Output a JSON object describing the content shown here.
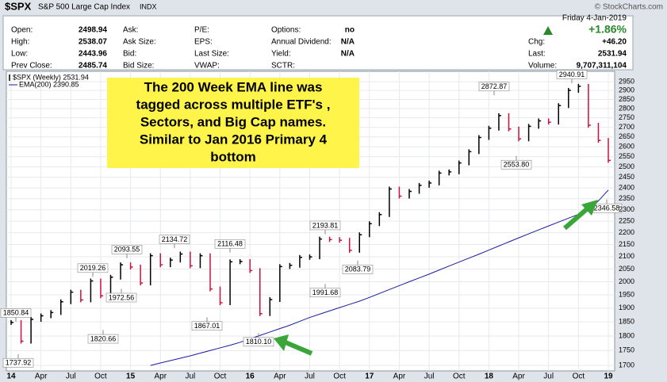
{
  "header": {
    "symbol": "$SPX",
    "name": "S&P 500 Large Cap Index",
    "exchange": "INDX",
    "date": "Friday  4-Jan-2019",
    "change_pct": "+1.86%",
    "watermark": "© StockCharts.com",
    "columns": [
      [
        {
          "label": "Open:",
          "value": "2498.94"
        },
        {
          "label": "High:",
          "value": "2538.07"
        },
        {
          "label": "Low:",
          "value": "2443.96"
        },
        {
          "label": "Prev Close:",
          "value": "2485.74"
        }
      ],
      [
        {
          "label": "Ask:"
        },
        {
          "label": "Ask Size:"
        },
        {
          "label": "Bid:"
        },
        {
          "label": "Bid Size:"
        }
      ],
      [
        {
          "label": "P/E:"
        },
        {
          "label": "EPS:"
        },
        {
          "label": "Last Size:"
        },
        {
          "label": "VWAP:"
        }
      ],
      [
        {
          "label": "Options:",
          "value": "no"
        },
        {
          "label": "Annual Dividend:",
          "value": "N/A"
        },
        {
          "label": "Yield:",
          "value": "N/A"
        },
        {
          "label": "SCTR:"
        }
      ]
    ],
    "stats": [
      {
        "label": "Chg:",
        "value": "+46.20"
      },
      {
        "label": "Last:",
        "value": "2531.94"
      },
      {
        "label": "Volume:",
        "value": "9,707,311,104"
      }
    ]
  },
  "chart_data": {
    "type": "line",
    "log": true,
    "grid": true,
    "legend": [
      "$SPX (Weekly) 2531.94",
      "EMA(200) 2390.85"
    ],
    "callout": [
      "The 200 Week EMA line was",
      "tagged across multiple ETF's ,",
      "Sectors, and Big Cap names.",
      "Similar to Jan 2016 Primary 4",
      "bottom"
    ],
    "categories": [
      "14",
      null,
      null,
      "Apr",
      null,
      null,
      "Jul",
      null,
      null,
      "Oct",
      null,
      null,
      "15",
      null,
      null,
      "Apr",
      null,
      null,
      "Jul",
      null,
      null,
      "Oct",
      null,
      null,
      "16",
      null,
      null,
      "Apr",
      null,
      null,
      "Jul",
      null,
      null,
      "Oct",
      null,
      null,
      "17",
      null,
      null,
      "Apr",
      null,
      null,
      "Jul",
      null,
      null,
      "Oct",
      null,
      null,
      "18",
      null,
      null,
      "Apr",
      null,
      null,
      "Jul",
      null,
      null,
      "Oct",
      null,
      null,
      "19"
    ],
    "series": [
      {
        "name": "$SPX",
        "color": "#000000",
        "down_color": "#d0103a",
        "values": [
          1848,
          1782,
          1859,
          1872,
          1884,
          1924,
          1960,
          1931,
          2003,
          1946,
          2018,
          2067,
          2058,
          1995,
          2104,
          2067,
          2086,
          2111,
          2063,
          2104,
          1972,
          1920,
          2079,
          2080,
          2044,
          1880,
          1932,
          2060,
          2065,
          2097,
          2099,
          2173,
          2171,
          2168,
          2126,
          2191,
          2239,
          2279,
          2395,
          2362,
          2384,
          2412,
          2423,
          2470,
          2476,
          2519,
          2575,
          2647,
          2695,
          2762,
          2691,
          2640,
          2705,
          2734,
          2727,
          2816,
          2901,
          2924,
          2711,
          2632,
          2531.94
        ]
      },
      {
        "name": "EMA(200)",
        "color": "#1a1aa0",
        "values": [
          null,
          null,
          null,
          null,
          null,
          null,
          null,
          null,
          null,
          null,
          null,
          null,
          null,
          null,
          1700,
          1708,
          1716,
          1724,
          1732,
          1741,
          1750,
          1759,
          1768,
          1778,
          1790,
          1802,
          1814,
          1826,
          1838,
          1852,
          1866,
          1878,
          1890,
          1902,
          1914,
          1926,
          1940,
          1955,
          1970,
          1985,
          2000,
          2015,
          2030,
          2046,
          2062,
          2078,
          2094,
          2110,
          2127,
          2144,
          2161,
          2178,
          2195,
          2212,
          2229,
          2246,
          2263,
          2280,
          2300,
          2340,
          2390
        ]
      }
    ],
    "annotations": [
      1850.84,
      1737.92,
      2019.26,
      1820.66,
      2093.55,
      1972.56,
      2134.72,
      1867.01,
      2116.48,
      {
        "value": 1810.1,
        "label": "1810.10"
      },
      2193.81,
      1991.68,
      2083.79,
      2872.87,
      {
        "value": 2553.8,
        "label": "2553.80"
      },
      2940.91,
      2346.58
    ],
    "ylim": [
      1682,
      3010
    ],
    "yticks": [
      1700,
      1750,
      1800,
      1850,
      1900,
      1950,
      2000,
      2050,
      2100,
      2150,
      2200,
      2250,
      2300,
      2350,
      2400,
      2450,
      2500,
      2550,
      2600,
      2650,
      2700,
      2750,
      2800,
      2850,
      2900,
      2950
    ]
  }
}
